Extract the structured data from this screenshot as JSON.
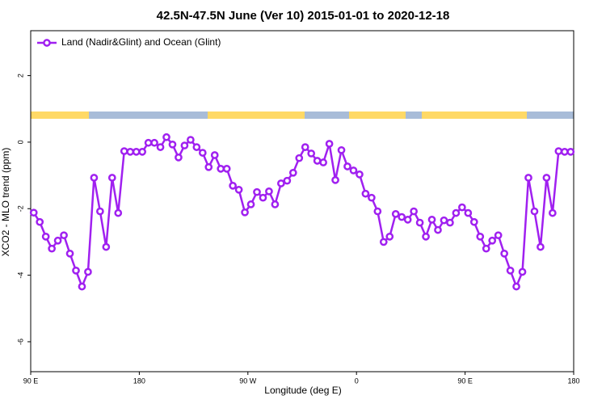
{
  "chart_data": {
    "type": "line",
    "title": "42.5N-47.5N June (Ver 10)   2015-01-01 to 2020-12-18",
    "x_label": "Longitude (deg E)",
    "y_label": "XCO2 - MLO trend (ppm)",
    "xlim": [
      90,
      540
    ],
    "ylim": [
      -6.9,
      3.35
    ],
    "xticks": [
      {
        "value": 90,
        "label": "90 E"
      },
      {
        "value": 180,
        "label": "180"
      },
      {
        "value": 270,
        "label": "90 W"
      },
      {
        "value": 360,
        "label": "0"
      },
      {
        "value": 450,
        "label": "90 E"
      },
      {
        "value": 540,
        "label": "180"
      }
    ],
    "yticks": [
      2,
      0,
      -2,
      -4,
      -6
    ],
    "grid": false,
    "legend": "top-left",
    "x": [
      92.5,
      97.5,
      102.5,
      107.5,
      112.5,
      117.5,
      122.5,
      127.5,
      132.5,
      137.5,
      142.5,
      147.5,
      152.5,
      157.5,
      162.5,
      167.5,
      172.5,
      177.5,
      182.5,
      187.5,
      192.5,
      197.5,
      202.5,
      207.5,
      212.5,
      217.5,
      222.5,
      227.5,
      232.5,
      237.5,
      242.5,
      247.5,
      252.5,
      257.5,
      262.5,
      267.5,
      272.5,
      277.5,
      282.5,
      287.5,
      292.5,
      297.5,
      302.5,
      307.5,
      312.5,
      317.5,
      322.5,
      327.5,
      332.5,
      337.5,
      342.5,
      347.5,
      352.5,
      357.5,
      362.5,
      367.5,
      372.5,
      377.5,
      382.5,
      387.5,
      392.5,
      397.5,
      402.5,
      407.5,
      412.5,
      417.5,
      422.5,
      427.5,
      432.5,
      437.5,
      442.5,
      447.5,
      452.5,
      457.5,
      462.5,
      467.5,
      472.5,
      477.5,
      482.5,
      487.5,
      492.5,
      497.5,
      502.5,
      507.5,
      512.5,
      517.5,
      522.5,
      527.5,
      532.5,
      537.5
    ],
    "series": [
      {
        "name": "Land (Nadir&Glint) and Ocean (Glint)",
        "color": "#a020f0",
        "values": [
          -2.12,
          -2.4,
          -2.84,
          -3.2,
          -2.96,
          -2.8,
          -3.35,
          -3.86,
          -4.34,
          -3.9,
          -1.07,
          -2.08,
          -3.15,
          -1.07,
          -2.13,
          -0.27,
          -0.29,
          -0.29,
          -0.29,
          -0.02,
          -0.02,
          -0.15,
          0.15,
          -0.07,
          -0.46,
          -0.1,
          0.07,
          -0.15,
          -0.32,
          -0.75,
          -0.39,
          -0.8,
          -0.8,
          -1.31,
          -1.43,
          -2.11,
          -1.87,
          -1.5,
          -1.67,
          -1.48,
          -1.87,
          -1.24,
          -1.16,
          -0.92,
          -0.48,
          -0.15,
          -0.34,
          -0.56,
          -0.61,
          -0.05,
          -1.14,
          -0.24,
          -0.73,
          -0.85,
          -0.97,
          -1.55,
          -1.67,
          -2.08,
          -3.0,
          -2.84,
          -2.16,
          -2.25,
          -2.33,
          -2.08,
          -2.42,
          -2.84,
          -2.33,
          -2.64,
          -2.35,
          -2.42,
          -2.13,
          -1.96,
          -2.13,
          -2.4,
          -2.84,
          -3.2,
          -2.96,
          -2.8,
          -3.35,
          -3.86,
          -4.34,
          -3.9,
          -1.07,
          -2.08,
          -3.15,
          -1.07,
          -2.13,
          -0.27,
          -0.29,
          -0.29
        ]
      }
    ]
  }
}
